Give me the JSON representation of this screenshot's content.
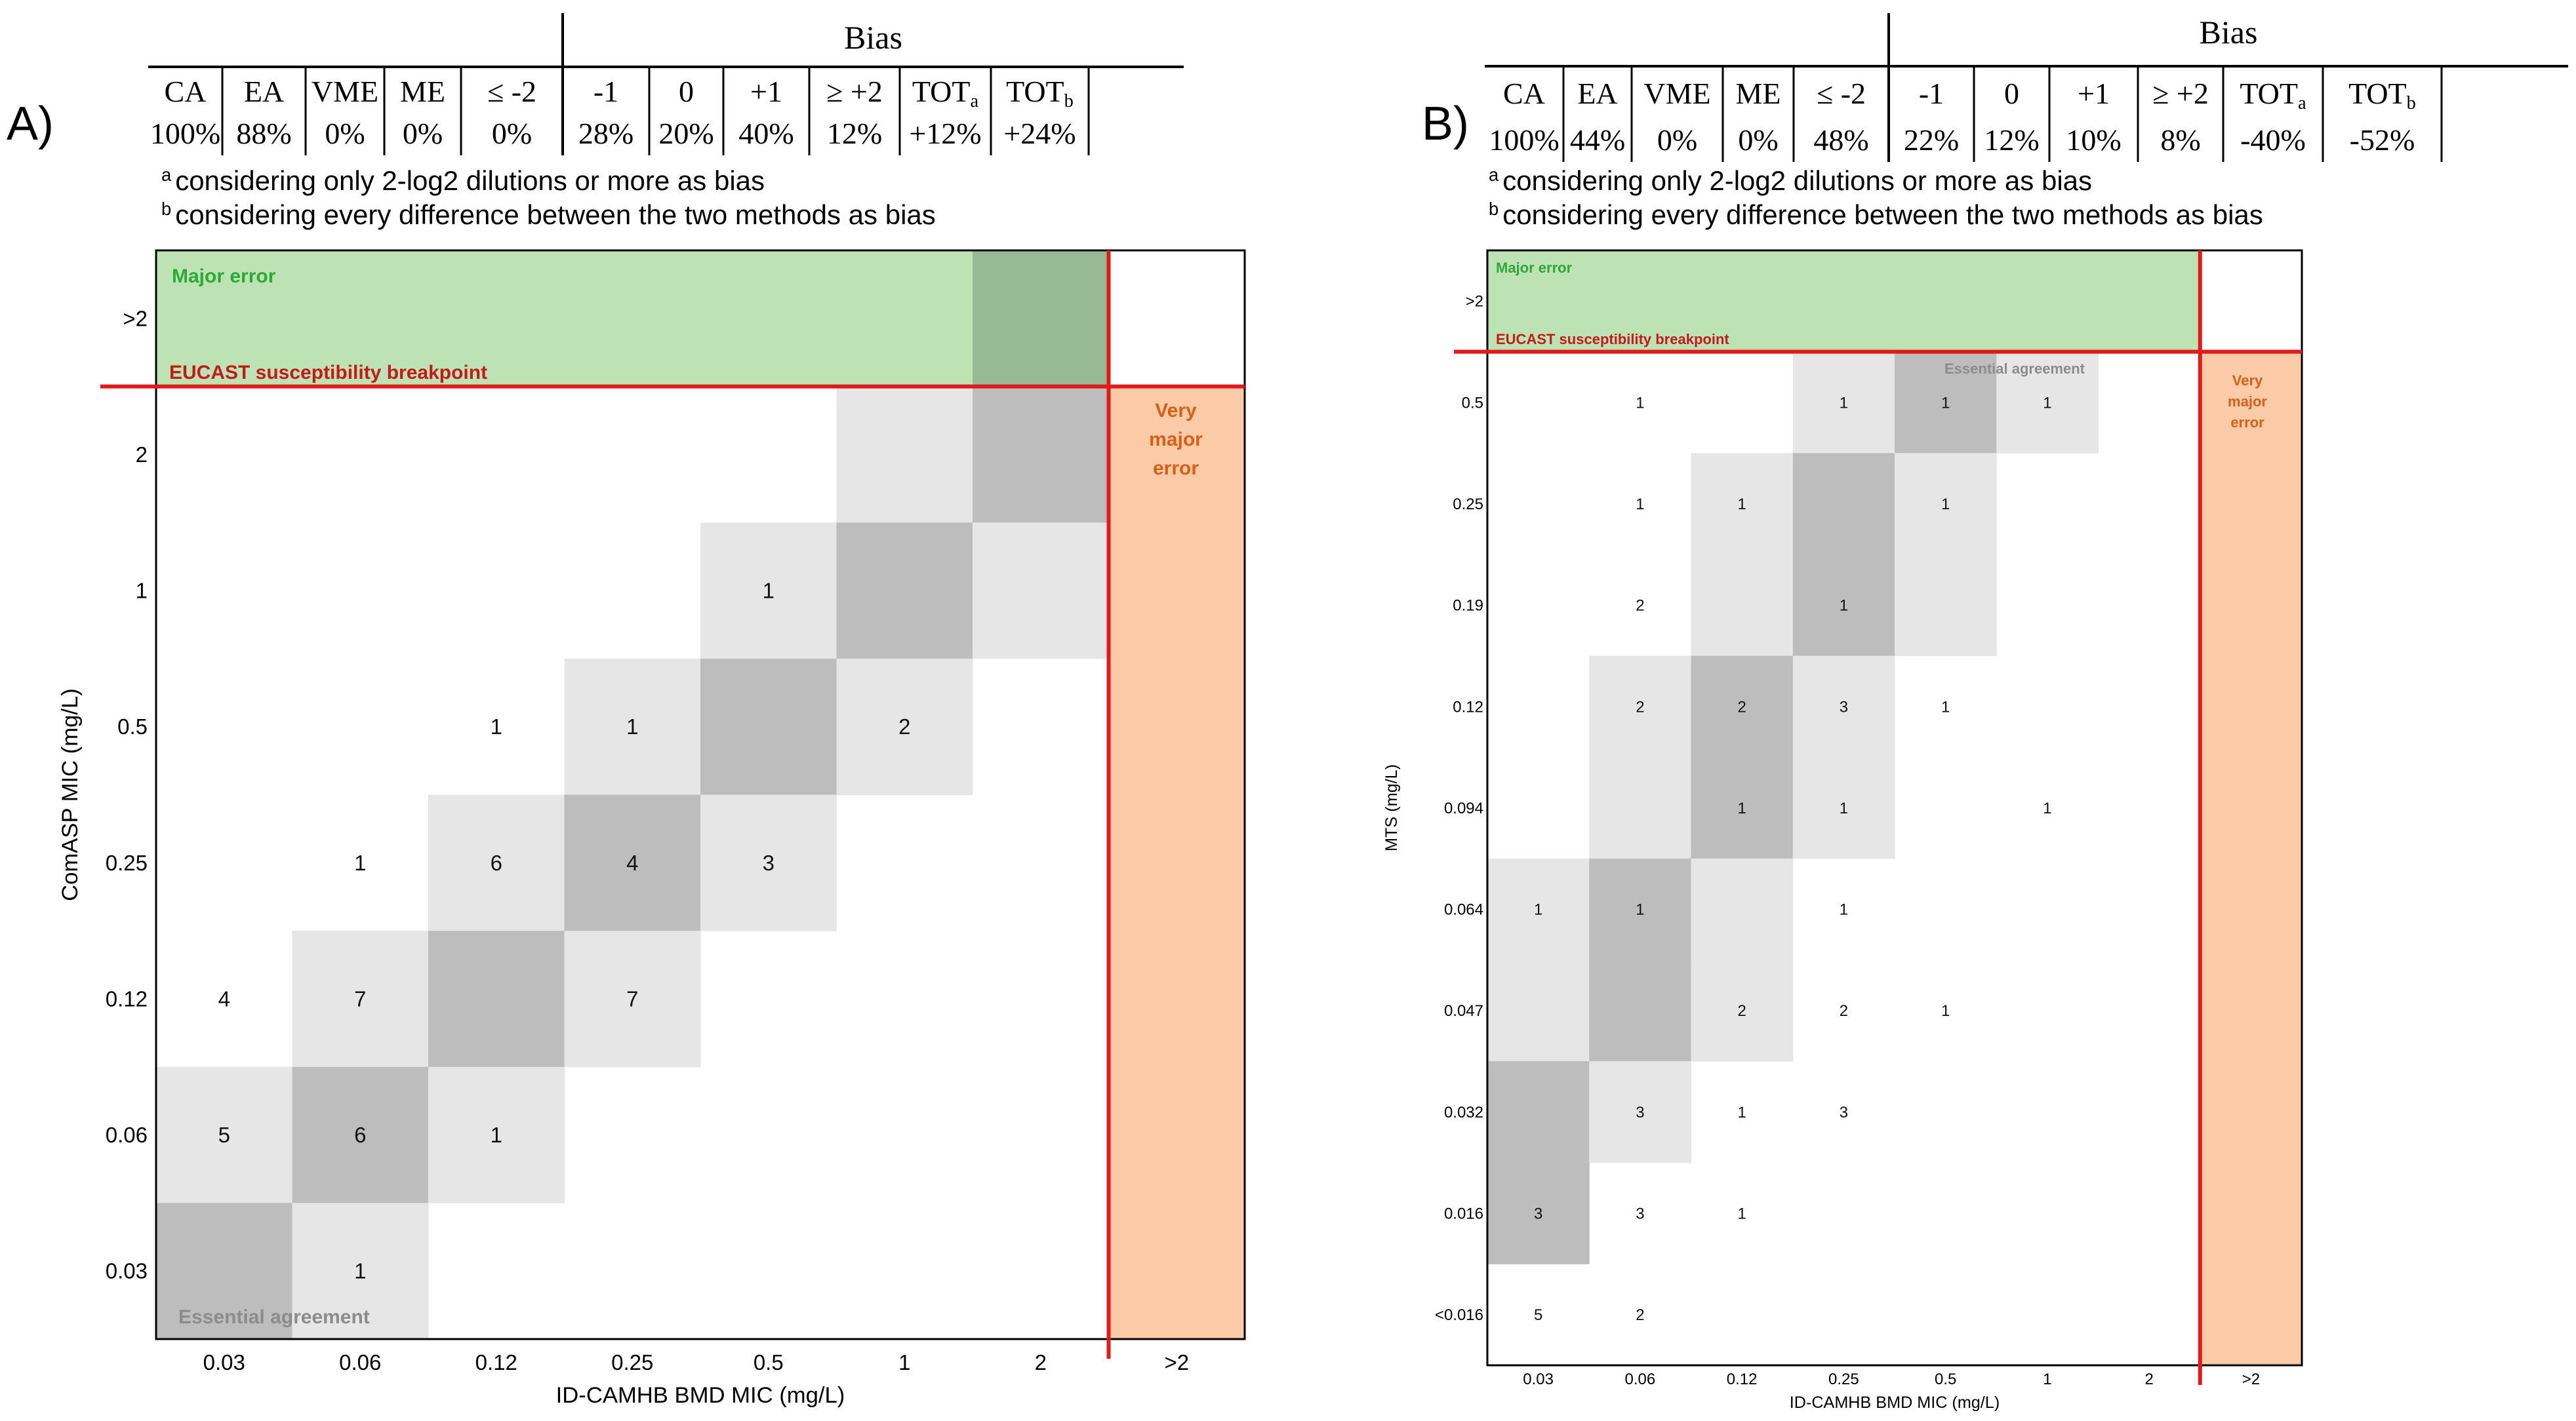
{
  "chart_data": [
    {
      "panel_label": "A)",
      "type": "heatmap",
      "summary_table": {
        "bias_header": "Bias",
        "headers": [
          "CA",
          "EA",
          "VME",
          "ME",
          "≤ -2",
          "-1",
          "0",
          "+1",
          "≥ +2",
          "TOT",
          "TOT"
        ],
        "header_subscripts": [
          "",
          "",
          "",
          "",
          "",
          "",
          "",
          "",
          "",
          "a",
          "b"
        ],
        "values": [
          "100%",
          "88%",
          "0%",
          "0%",
          "0%",
          "28%",
          "20%",
          "40%",
          "12%",
          "+12%",
          "+24%"
        ]
      },
      "footnotes": [
        {
          "mark": "a",
          "text": "considering only 2-log2 dilutions or more as bias"
        },
        {
          "mark": "b",
          "text": "considering every difference between the two methods as bias"
        }
      ],
      "xlabel": "ID-CAMHB BMD MIC (mg/L)",
      "ylabel": "ComASP MIC (mg/L)",
      "x_categories": [
        "0.03",
        "0.06",
        "0.12",
        "0.25",
        "0.5",
        "1",
        "2",
        ">2"
      ],
      "y_categories": [
        "0.03",
        "0.06",
        "0.12",
        "0.25",
        "0.5",
        "1",
        "2",
        ">2"
      ],
      "region_labels": {
        "major_error": "Major error",
        "breakpoint": "EUCAST susceptibility breakpoint",
        "very_major_error": [
          "Very",
          "major",
          "error"
        ],
        "essential_agreement": "Essential agreement"
      },
      "colors": {
        "diagonal": "#bdbdbd",
        "agreement_band": "#e6e6e6",
        "major_error": "#bde3b5",
        "major_error_diagonal": "#97b993",
        "very_major_error": "#fbcaa7",
        "breakpoint_line": "#e01b1b",
        "major_error_text": "#2fa83a",
        "breakpoint_text": "#c41a1a",
        "vme_text": "#d4601a",
        "ea_text": "#8c8c8c"
      },
      "counts": [
        {
          "x": "0.03",
          "y": "0.12",
          "n": 4
        },
        {
          "x": "0.06",
          "y": "0.25",
          "n": 1
        },
        {
          "x": "0.06",
          "y": "0.12",
          "n": 7
        },
        {
          "x": "0.12",
          "y": "0.5",
          "n": 1
        },
        {
          "x": "0.12",
          "y": "0.25",
          "n": 6
        },
        {
          "x": "0.25",
          "y": "0.5",
          "n": 1
        },
        {
          "x": "0.25",
          "y": "0.25",
          "n": 4
        },
        {
          "x": "0.25",
          "y": "0.12",
          "n": 7
        },
        {
          "x": "0.5",
          "y": "1",
          "n": 1
        },
        {
          "x": "0.5",
          "y": "0.25",
          "n": 3
        },
        {
          "x": "1",
          "y": "0.5",
          "n": 2
        },
        {
          "x": "0.03",
          "y": "0.06",
          "n": 5
        },
        {
          "x": "0.06",
          "y": "0.06",
          "n": 6
        },
        {
          "x": "0.12",
          "y": "0.06",
          "n": 1
        },
        {
          "x": "0.06",
          "y": "0.03",
          "n": 1
        }
      ]
    },
    {
      "panel_label": "B)",
      "type": "heatmap",
      "summary_table": {
        "bias_header": "Bias",
        "headers": [
          "CA",
          "EA",
          "VME",
          "ME",
          "≤ -2",
          "-1",
          "0",
          "+1",
          "≥ +2",
          "TOT",
          "TOT"
        ],
        "header_subscripts": [
          "",
          "",
          "",
          "",
          "",
          "",
          "",
          "",
          "",
          "a",
          "b"
        ],
        "values": [
          "100%",
          "44%",
          "0%",
          "0%",
          "48%",
          "22%",
          "12%",
          "10%",
          "8%",
          "-40%",
          "-52%"
        ]
      },
      "footnotes": [
        {
          "mark": "a",
          "text": "considering only 2-log2 dilutions or more as bias"
        },
        {
          "mark": "b",
          "text": "considering every difference between the two methods as bias"
        }
      ],
      "xlabel": "ID-CAMHB BMD MIC (mg/L)",
      "ylabel": "MTS (mg/L)",
      "x_categories": [
        "0.03",
        "0.06",
        "0.12",
        "0.25",
        "0.5",
        "1",
        "2",
        ">2"
      ],
      "y_categories": [
        "<0.016",
        "0.016",
        "0.032",
        "0.047",
        "0.064",
        "0.094",
        "0.12",
        "0.19",
        "0.25",
        "0.5",
        ">2"
      ],
      "region_labels": {
        "major_error": "Major error",
        "breakpoint": "EUCAST susceptibility breakpoint",
        "very_major_error": [
          "Very",
          "major",
          "error"
        ],
        "essential_agreement": "Essential agreement"
      },
      "colors": {
        "diagonal": "#bdbdbd",
        "agreement_band": "#e6e6e6",
        "major_error": "#bde3b5",
        "very_major_error": "#fbcaa7",
        "breakpoint_line": "#e01b1b",
        "major_error_text": "#2fa83a",
        "breakpoint_text": "#c41a1a",
        "vme_text": "#d4601a",
        "ea_text": "#8c8c8c"
      },
      "counts": [
        {
          "x": "0.06",
          "y": "0.5",
          "n": 1
        },
        {
          "x": "0.25",
          "y": "0.5",
          "n": 1
        },
        {
          "x": "0.5",
          "y": "0.5",
          "n": 1
        },
        {
          "x": "1",
          "y": "0.5",
          "n": 1
        },
        {
          "x": "0.06",
          "y": "0.25",
          "n": 1
        },
        {
          "x": "0.12",
          "y": "0.25",
          "n": 1
        },
        {
          "x": "0.5",
          "y": "0.25",
          "n": 1
        },
        {
          "x": "0.06",
          "y": "0.19",
          "n": 2
        },
        {
          "x": "0.25",
          "y": "0.19",
          "n": 1
        },
        {
          "x": "0.06",
          "y": "0.12",
          "n": 2
        },
        {
          "x": "0.12",
          "y": "0.12",
          "n": 2
        },
        {
          "x": "0.25",
          "y": "0.12",
          "n": 3
        },
        {
          "x": "0.5",
          "y": "0.12",
          "n": 1
        },
        {
          "x": "0.12",
          "y": "0.094",
          "n": 1
        },
        {
          "x": "0.25",
          "y": "0.094",
          "n": 1
        },
        {
          "x": "1",
          "y": "0.094",
          "n": 1
        },
        {
          "x": "0.03",
          "y": "0.064",
          "n": 1
        },
        {
          "x": "0.06",
          "y": "0.064",
          "n": 1
        },
        {
          "x": "0.25",
          "y": "0.064",
          "n": 1
        },
        {
          "x": "0.12",
          "y": "0.047",
          "n": 2
        },
        {
          "x": "0.25",
          "y": "0.047",
          "n": 2
        },
        {
          "x": "0.5",
          "y": "0.047",
          "n": 1
        },
        {
          "x": "0.06",
          "y": "0.032",
          "n": 3
        },
        {
          "x": "0.12",
          "y": "0.032",
          "n": 1
        },
        {
          "x": "0.25",
          "y": "0.032",
          "n": 3
        },
        {
          "x": "0.03",
          "y": "0.016",
          "n": 3
        },
        {
          "x": "0.06",
          "y": "0.016",
          "n": 3
        },
        {
          "x": "0.12",
          "y": "0.016",
          "n": 1
        },
        {
          "x": "0.03",
          "y": "<0.016",
          "n": 5
        },
        {
          "x": "0.06",
          "y": "<0.016",
          "n": 2
        }
      ]
    }
  ]
}
